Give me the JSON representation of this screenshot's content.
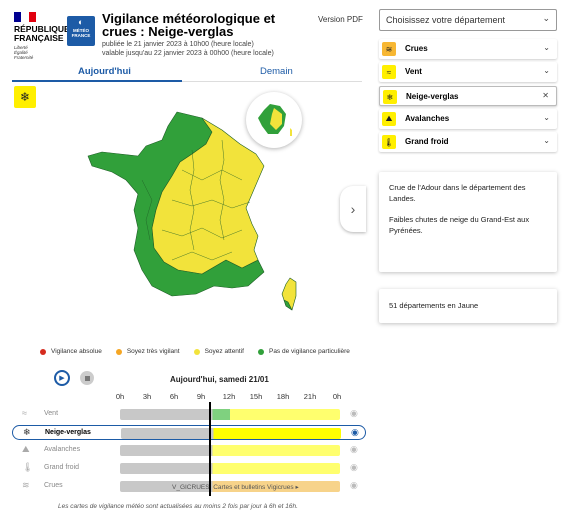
{
  "header": {
    "rf_logo_lines": [
      "RÉPUBLIQUE",
      "FRANÇAISE"
    ],
    "rf_motto": [
      "Liberté",
      "Égalité",
      "Fraternité"
    ],
    "mf_logo": [
      "MÉTÉO",
      "FRANCE"
    ],
    "title": "Vigilance météorologique et crues : Neige-verglas",
    "published": "publiée le 21 janvier 2023 à 10h00 (heure locale)",
    "valid_until": "valable jusqu'au 22 janvier 2023 à 00h00 (heure locale)",
    "pdf_link": "Version PDF"
  },
  "tabs": [
    {
      "label": "Aujourd'hui",
      "active": true
    },
    {
      "label": "Demain",
      "active": false
    }
  ],
  "selected_icon": "snowflake-icon",
  "legend": [
    {
      "label": "Vigilance absolue",
      "color": "#d52b1e"
    },
    {
      "label": "Soyez très vigilant",
      "color": "#f5a623"
    },
    {
      "label": "Soyez attentif",
      "color": "#f2e33b"
    },
    {
      "label": "Pas de vigilance particulière",
      "color": "#31a03a"
    }
  ],
  "timeline": {
    "date_label": "Aujourd'hui, samedi 21/01",
    "hours": [
      "0h",
      "3h",
      "6h",
      "9h",
      "12h",
      "15h",
      "18h",
      "21h",
      "0h"
    ],
    "rows": [
      {
        "label": "Vent",
        "icon": "wind-icon",
        "active": false
      },
      {
        "label": "Neige-verglas",
        "icon": "snowflake-icon",
        "active": true
      },
      {
        "label": "Avalanches",
        "icon": "avalanche-icon",
        "active": false
      },
      {
        "label": "Grand froid",
        "icon": "thermometer-icon",
        "active": false
      },
      {
        "label": "Crues",
        "icon": "waves-icon",
        "active": false
      }
    ],
    "crues_text": "V_GICRUES",
    "crues_link": "Cartes et bulletins Vigicrues",
    "footer": "Les cartes de vigilance météo sont actualisées au moins 2 fois par jour à 6h et 16h."
  },
  "sidebar": {
    "department_select": "Choisissez votre département",
    "phenomena": [
      {
        "label": "Crues",
        "icon": "waves-icon",
        "control": "chevron-down"
      },
      {
        "label": "Vent",
        "icon": "wind-icon",
        "control": "chevron-down"
      },
      {
        "label": "Neige-verglas",
        "icon": "snowflake-icon",
        "control": "close"
      },
      {
        "label": "Avalanches",
        "icon": "avalanche-icon",
        "control": "chevron-down"
      },
      {
        "label": "Grand froid",
        "icon": "thermometer-icon",
        "control": "chevron-down"
      }
    ],
    "info_lines": [
      "Crue de l'Adour dans le département des Landes.",
      "Faibles chutes de neige  du Grand-Est aux Pyrénées."
    ],
    "departments_count": "51 départements en Jaune"
  },
  "colors": {
    "green": "#31a03a",
    "yellow": "#f2e33b",
    "accent": "#1d5ba6",
    "bar_grey": "#c8c8c8",
    "bar_yellow": "#ffff6e",
    "bar_green": "#7fd17f"
  }
}
